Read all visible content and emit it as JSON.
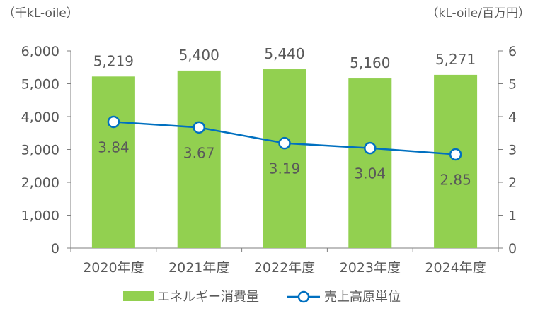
{
  "chart_data": {
    "type": "bar",
    "categories": [
      "2020年度",
      "2021年度",
      "2022年度",
      "2023年度",
      "2024年度"
    ],
    "series": [
      {
        "name": "エネルギー消費量",
        "type": "bar",
        "axis": "left",
        "values": [
          5219,
          5400,
          5440,
          5160,
          5271
        ],
        "labels": [
          "5,219",
          "5,400",
          "5,440",
          "5,160",
          "5,271"
        ],
        "color": "#92d050"
      },
      {
        "name": "売上高原単位",
        "type": "line",
        "axis": "right",
        "values": [
          3.84,
          3.67,
          3.19,
          3.04,
          2.85
        ],
        "labels": [
          "3.84",
          "3.67",
          "3.19",
          "3.04",
          "2.85"
        ],
        "color": "#0070c0"
      }
    ],
    "left_axis": {
      "unit_label": "（千kL-oile）",
      "ylim": [
        0,
        6000
      ],
      "ticks": [
        0,
        1000,
        2000,
        3000,
        4000,
        5000,
        6000
      ],
      "tick_labels": [
        "0",
        "1,000",
        "2,000",
        "3,000",
        "4,000",
        "5,000",
        "6,000"
      ]
    },
    "right_axis": {
      "unit_label": "（kL-oile/百万円）",
      "ylim": [
        0,
        6
      ],
      "ticks": [
        0,
        1,
        2,
        3,
        4,
        5,
        6
      ],
      "tick_labels": [
        "0",
        "1",
        "2",
        "3",
        "4",
        "5",
        "6"
      ]
    },
    "legend_position": "bottom-center",
    "grid": false
  }
}
